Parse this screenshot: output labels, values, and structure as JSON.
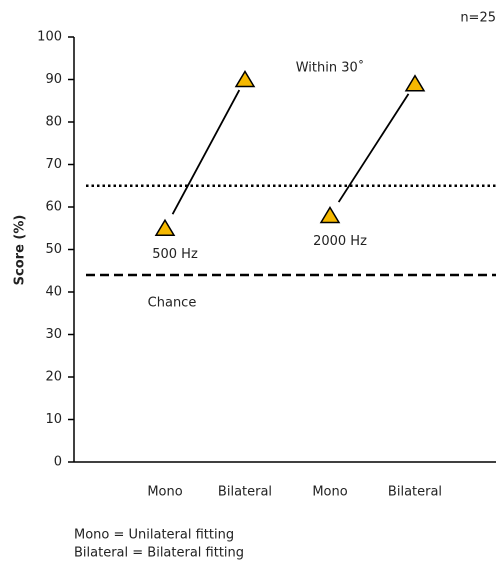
{
  "chart_data": {
    "type": "line",
    "annotation": "n=25",
    "ylabel": "Score (%)",
    "categories": [
      "Mono",
      "Bilateral",
      "Mono",
      "Bilateral"
    ],
    "series": [
      {
        "name": "500 Hz",
        "color": "#f5b800",
        "values": [
          55,
          90,
          null,
          null
        ]
      },
      {
        "name": "2000 Hz",
        "color": "#f5b800",
        "values": [
          null,
          null,
          58,
          89
        ]
      }
    ],
    "reference_lines": [
      {
        "value": 65,
        "label": "Within 30˚",
        "style": "dotted"
      },
      {
        "value": 44,
        "label": "Chance",
        "style": "dashed"
      }
    ],
    "ylim": [
      0,
      100
    ],
    "yticks": [
      0,
      10,
      20,
      30,
      40,
      50,
      60,
      70,
      80,
      90,
      100
    ],
    "notes": [
      "Mono = Unilateral fitting",
      "Bilateral = Bilateral fitting"
    ]
  }
}
